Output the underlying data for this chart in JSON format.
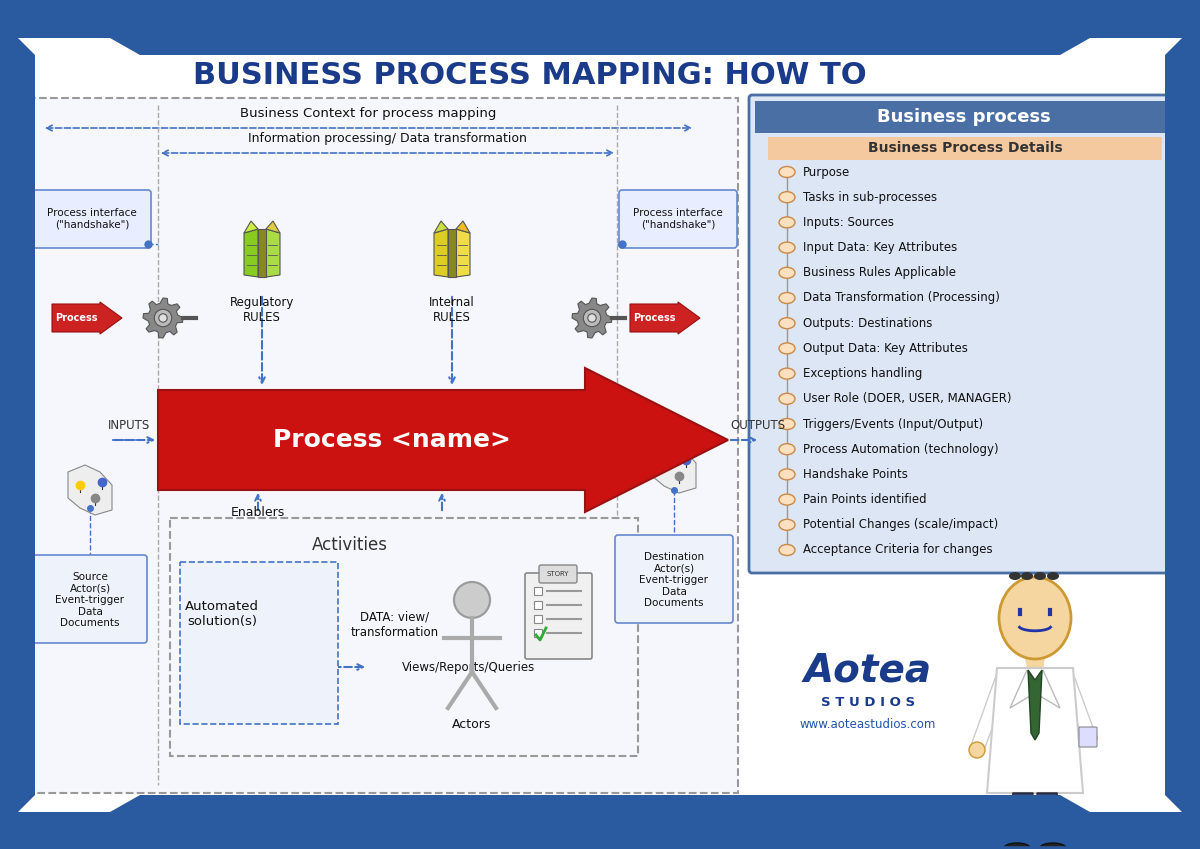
{
  "title": "BUSINESS PROCESS MAPPING: HOW TO",
  "title_color": "#1a3a8a",
  "title_fontsize": 22,
  "bg_color": "#ffffff",
  "outer_border_color": "#2a5aa0",
  "right_panel_header_bg": "#4a6fa5",
  "right_panel_subheader_bg": "#f5c9a0",
  "right_panel_body_bg": "#dce6f5",
  "right_panel_title": "Business process",
  "right_panel_subtitle": "Business Process Details",
  "right_panel_items": [
    "Purpose",
    "Tasks in sub-processes",
    "Inputs: Sources",
    "Input Data: Key Attributes",
    "Business Rules Applicable",
    "Data Transformation (Processing)",
    "Outputs: Destinations",
    "Output Data: Key Attributes",
    "Exceptions handling",
    "User Role (DOER, USER, MANAGER)",
    "Triggers/Events (Input/Output)",
    "Process Automation (technology)",
    "Handshake Points",
    "Pain Points identified",
    "Potential Changes (scale/impact)",
    "Acceptance Criteria for changes"
  ],
  "process_name": "Process <name>",
  "inputs_label": "INPUTS",
  "outputs_label": "OUTPUTS",
  "enablers_label": "Enablers",
  "activities_label": "Activities",
  "automated_label": "Automated\nsolution(s)",
  "data_view_label": "DATA: view/\ntransformation",
  "views_reports_label": "Views/Reports/Queries",
  "actors_label": "Actors",
  "source_actor_label": "Source\nActor(s)\nEvent-trigger\nData\nDocuments",
  "dest_actor_label": "Destination\nActor(s)\nEvent-trigger\nData\nDocuments",
  "context_label": "Business Context for process mapping",
  "info_label": "Information processing/ Data transformation",
  "handshake_left": "Process interface\n(\"handshake\")",
  "handshake_right": "Process interface\n(\"handshake\")",
  "regulatory_label": "Regulatory\nRULES",
  "internal_label": "Internal\nRULES",
  "aotea_color": "#1a3a8a",
  "dashed_blue": "#4472c4",
  "banner_blue": "#2a5aa0"
}
